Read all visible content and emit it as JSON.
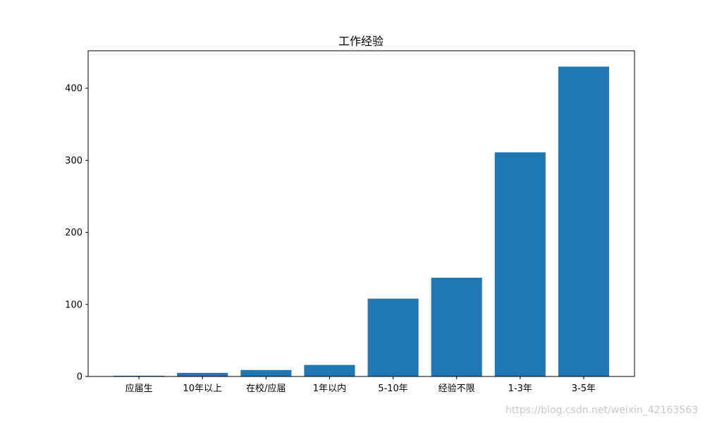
{
  "chart_data": {
    "type": "bar",
    "title": "工作经验",
    "categories": [
      "应届生",
      "10年以上",
      "在校/应届",
      "1年以内",
      "5-10年",
      "经验不限",
      "1-3年",
      "3-5年"
    ],
    "values": [
      1,
      5,
      9,
      16,
      108,
      137,
      311,
      430
    ],
    "ylim": [
      0,
      452
    ],
    "yticks": [
      0,
      100,
      200,
      300,
      400
    ],
    "grid": false,
    "color": "#1f77b4"
  },
  "watermark": "https://blog.csdn.net/weixin_42163563"
}
